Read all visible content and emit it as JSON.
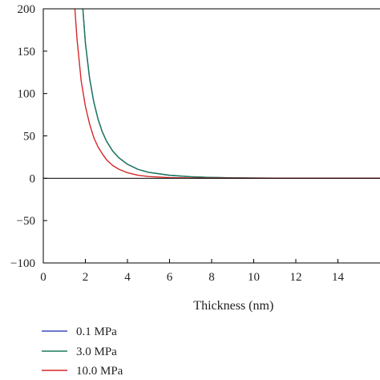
{
  "chart_data": {
    "type": "line",
    "xlabel": "Thickness (nm)",
    "ylabel": "",
    "xlim": [
      0,
      16
    ],
    "ylim": [
      -100,
      200
    ],
    "xticks": [
      0,
      2,
      4,
      6,
      8,
      10,
      12,
      14
    ],
    "yticks": [
      -100,
      -50,
      0,
      50,
      100,
      150,
      200
    ],
    "zero_line": true,
    "grid": false,
    "legend_position": "bottom-left",
    "series": [
      {
        "name": "0.1 MPa",
        "color": "#3b4cc0",
        "x": [
          1.88,
          2.0,
          2.2,
          2.4,
          2.6,
          2.8,
          3.0,
          3.3,
          3.6,
          4.0,
          4.5,
          5.0,
          6.0,
          7.0,
          8.0,
          9.0,
          10.0,
          12.0,
          14.0,
          16.0
        ],
        "y": [
          200,
          160,
          118,
          90,
          70,
          55,
          44,
          32,
          24,
          16.5,
          10.5,
          7,
          3.5,
          1.8,
          0.9,
          0.45,
          0.2,
          0.05,
          0.0,
          0.0
        ]
      },
      {
        "name": "3.0 MPa",
        "color": "#1e7a5a",
        "x": [
          1.88,
          2.0,
          2.2,
          2.4,
          2.6,
          2.8,
          3.0,
          3.3,
          3.6,
          4.0,
          4.5,
          5.0,
          6.0,
          7.0,
          8.0,
          9.0,
          10.0,
          12.0,
          14.0,
          16.0
        ],
        "y": [
          200,
          160,
          118,
          90,
          70,
          55,
          44,
          32,
          24,
          16.5,
          10.5,
          7,
          3.5,
          1.8,
          0.9,
          0.45,
          0.2,
          0.05,
          0.0,
          0.0
        ]
      },
      {
        "name": "10.0 MPa",
        "color": "#d62728",
        "x": [
          1.5,
          1.6,
          1.8,
          2.0,
          2.2,
          2.4,
          2.6,
          2.8,
          3.0,
          3.3,
          3.6,
          4.0,
          4.5,
          5.0,
          6.0,
          7.0,
          8.0,
          10.0,
          12.0,
          16.0
        ],
        "y": [
          200,
          165,
          115,
          85,
          64,
          48,
          37,
          29,
          22,
          15,
          10.5,
          6.5,
          3.6,
          2.0,
          0.7,
          0.25,
          0.1,
          0.0,
          0.0,
          0.0
        ]
      }
    ]
  }
}
